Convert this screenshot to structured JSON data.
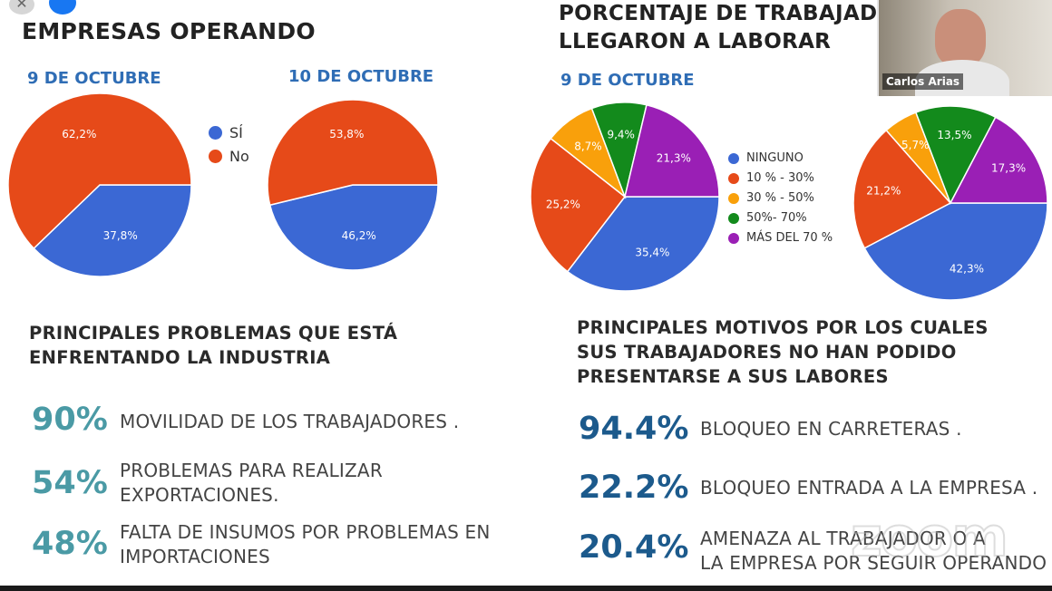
{
  "left": {
    "title": "EMPRESAS OPERANDO",
    "legend": [
      {
        "label": "SÍ",
        "color": "#3b68d4"
      },
      {
        "label": "No",
        "color": "#e64a19"
      }
    ],
    "problems_title_line1": "PRINCIPALES PROBLEMAS QUE ESTÁ",
    "problems_title_line2": "ENFRENTANDO LA INDUSTRIA",
    "problems": [
      {
        "pct": "90%",
        "line1": "MOVILIDAD DE LOS TRABAJADORES .",
        "line2": ""
      },
      {
        "pct": "54%",
        "line1": "PROBLEMAS PARA REALIZAR",
        "line2": "EXPORTACIONES."
      },
      {
        "pct": "48%",
        "line1": "FALTA DE INSUMOS POR PROBLEMAS EN",
        "line2": "IMPORTACIONES"
      }
    ]
  },
  "right": {
    "title_line1": "PORCENTAJE DE TRABAJADO",
    "title_line2": "LLEGARON A LABORAR",
    "legend": [
      {
        "label": "NINGUNO",
        "color": "#3b68d4"
      },
      {
        "label": "10 % - 30%",
        "color": "#e64a19"
      },
      {
        "label": "30 % - 50%",
        "color": "#f9a00b"
      },
      {
        "label": "50%- 70%",
        "color": "#138a1c"
      },
      {
        "label": "MÁS DEL 70 %",
        "color": "#9a1fb5"
      }
    ],
    "reasons_title_line1": "PRINCIPALES MOTIVOS POR LOS CUALES",
    "reasons_title_line2": "SUS TRABAJADORES NO HAN PODIDO",
    "reasons_title_line3": "PRESENTARSE A SUS LABORES",
    "reasons": [
      {
        "pct": "94.4%",
        "line1": "BLOQUEO EN CARRETERAS .",
        "line2": ""
      },
      {
        "pct": "22.2%",
        "line1": "BLOQUEO ENTRADA A LA EMPRESA .",
        "line2": ""
      },
      {
        "pct": "20.4%",
        "line1": "AMENAZA AL TRABAJADOR O A",
        "line2": "LA EMPRESA POR SEGUIR OPERANDO"
      }
    ]
  },
  "video": {
    "name": "Carlos Arias"
  },
  "watermark": "zoom",
  "chart_data": [
    {
      "type": "pie",
      "title": "9 DE OCTUBRE",
      "categories": [
        "SÍ",
        "No"
      ],
      "values": [
        37.8,
        62.2
      ],
      "labels": [
        "37,8%",
        "62,2%"
      ],
      "colors": [
        "#3b68d4",
        "#e64a19"
      ]
    },
    {
      "type": "pie",
      "title": "10 DE OCTUBRE",
      "categories": [
        "SÍ",
        "No"
      ],
      "values": [
        46.2,
        53.8
      ],
      "labels": [
        "46,2%",
        "53,8%"
      ],
      "colors": [
        "#3b68d4",
        "#e64a19"
      ]
    },
    {
      "type": "pie",
      "title": "9 DE OCTUBRE",
      "categories": [
        "NINGUNO",
        "10 % - 30%",
        "30 % - 50%",
        "50%- 70%",
        "MÁS DEL 70 %"
      ],
      "values": [
        35.4,
        25.2,
        8.7,
        9.4,
        21.3
      ],
      "labels": [
        "35,4%",
        "25,2%",
        "8,7%",
        "9,4%",
        "21,3%"
      ],
      "colors": [
        "#3b68d4",
        "#e64a19",
        "#f9a00b",
        "#138a1c",
        "#9a1fb5"
      ]
    },
    {
      "type": "pie",
      "title": "",
      "categories": [
        "NINGUNO",
        "10 % - 30%",
        "30 % - 50%",
        "50%- 70%",
        "MÁS DEL 70 %"
      ],
      "values": [
        42.3,
        21.2,
        5.7,
        13.5,
        17.3
      ],
      "labels": [
        "42,3%",
        "21,2%",
        "5,7%",
        "13,5%",
        "17,3%"
      ],
      "colors": [
        "#3b68d4",
        "#e64a19",
        "#f9a00b",
        "#138a1c",
        "#9a1fb5"
      ]
    }
  ]
}
